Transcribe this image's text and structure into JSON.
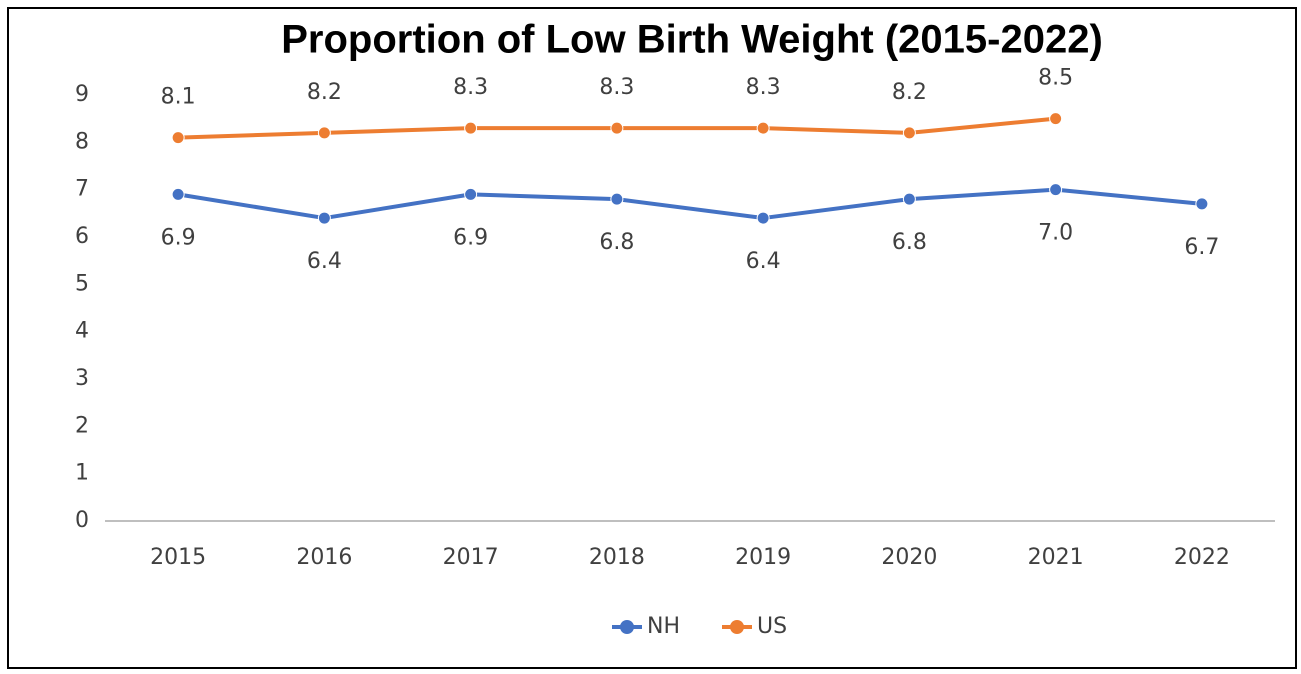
{
  "chart_data": {
    "type": "line",
    "title": "Proportion of Low Birth Weight (2015-2022)",
    "categories": [
      "2015",
      "2016",
      "2017",
      "2018",
      "2019",
      "2020",
      "2021",
      "2022"
    ],
    "series": [
      {
        "name": "NH",
        "color": "#4472c4",
        "values": [
          6.9,
          6.4,
          6.9,
          6.8,
          6.4,
          6.8,
          7.0,
          6.7
        ],
        "value_labels": [
          "6.9",
          "6.4",
          "6.9",
          "6.8",
          "6.4",
          "6.8",
          "7.0",
          "6.7"
        ]
      },
      {
        "name": "US",
        "color": "#ed7d31",
        "values": [
          8.1,
          8.2,
          8.3,
          8.3,
          8.3,
          8.2,
          8.5,
          null
        ],
        "value_labels": [
          "8.1",
          "8.2",
          "8.3",
          "8.3",
          "8.3",
          "8.2",
          "8.5",
          null
        ]
      }
    ],
    "ylim": [
      0,
      9
    ],
    "yticks": [
      0,
      1,
      2,
      3,
      4,
      5,
      6,
      7,
      8,
      9
    ],
    "grid": false,
    "legend": "bottom"
  }
}
